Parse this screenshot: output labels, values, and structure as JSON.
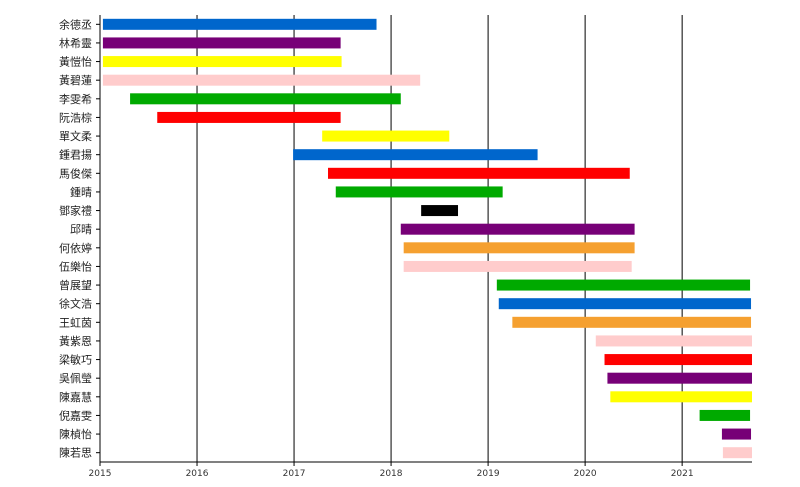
{
  "chart_data": {
    "type": "bar",
    "orientation": "horizontal-range",
    "title": "",
    "xlabel": "",
    "ylabel": "",
    "xlim": [
      2015.0,
      2021.72
    ],
    "x_ticks": [
      "2015",
      "2016",
      "2017",
      "2018",
      "2019",
      "2020",
      "2021"
    ],
    "grid": "vertical lines at each year",
    "legend": "none",
    "categories": [
      "余德丞",
      "林希靈",
      "黃愷怡",
      "黃碧蓮",
      "李雯希",
      "阮浩棕",
      "單文柔",
      "鍾君揚",
      "馬俊傑",
      "鍾晴",
      "鄧家禮",
      "邱晴",
      "何依婷",
      "伍樂怡",
      "曾展望",
      "徐文浩",
      "王虹茵",
      "黃紫恩",
      "梁敏巧",
      "吳佩瑩",
      "陳嘉慧",
      "倪嘉雯",
      "陳楨怡",
      "陳若思"
    ],
    "bars": [
      {
        "name": "余德丞",
        "start": 2015.03,
        "end": 2017.85,
        "color": "#0066cc"
      },
      {
        "name": "林希靈",
        "start": 2015.03,
        "end": 2017.48,
        "color": "#770077"
      },
      {
        "name": "黃愷怡",
        "start": 2015.03,
        "end": 2017.49,
        "color": "#ffff00"
      },
      {
        "name": "黃碧蓮",
        "start": 2015.03,
        "end": 2018.3,
        "color": "#ffcccc"
      },
      {
        "name": "李雯希",
        "start": 2015.31,
        "end": 2018.1,
        "color": "#00aa00"
      },
      {
        "name": "阮浩棕",
        "start": 2015.59,
        "end": 2017.48,
        "color": "#ff0000"
      },
      {
        "name": "單文柔",
        "start": 2017.29,
        "end": 2018.6,
        "color": "#ffff00"
      },
      {
        "name": "鍾君揚",
        "start": 2016.99,
        "end": 2019.51,
        "color": "#0066cc"
      },
      {
        "name": "馬俊傑",
        "start": 2017.35,
        "end": 2020.46,
        "color": "#ff0000"
      },
      {
        "name": "鍾晴",
        "start": 2017.43,
        "end": 2019.15,
        "color": "#00aa00"
      },
      {
        "name": "鄧家禮",
        "start": 2018.31,
        "end": 2018.69,
        "color": "#000000"
      },
      {
        "name": "邱晴",
        "start": 2018.1,
        "end": 2020.51,
        "color": "#770077"
      },
      {
        "name": "何依婷",
        "start": 2018.13,
        "end": 2020.51,
        "color": "#f5a030"
      },
      {
        "name": "伍樂怡",
        "start": 2018.13,
        "end": 2020.48,
        "color": "#ffcccc"
      },
      {
        "name": "曾展望",
        "start": 2019.09,
        "end": 2021.7,
        "color": "#00aa00"
      },
      {
        "name": "徐文浩",
        "start": 2019.11,
        "end": 2021.71,
        "color": "#0066cc"
      },
      {
        "name": "王虹茵",
        "start": 2019.25,
        "end": 2021.71,
        "color": "#f5a030"
      },
      {
        "name": "黃紫恩",
        "start": 2020.11,
        "end": 2021.72,
        "color": "#ffcccc"
      },
      {
        "name": "梁敏巧",
        "start": 2020.2,
        "end": 2021.72,
        "color": "#ff0000"
      },
      {
        "name": "吳佩瑩",
        "start": 2020.23,
        "end": 2021.72,
        "color": "#770077"
      },
      {
        "name": "陳嘉慧",
        "start": 2020.26,
        "end": 2021.72,
        "color": "#ffff00"
      },
      {
        "name": "倪嘉雯",
        "start": 2021.18,
        "end": 2021.7,
        "color": "#00aa00"
      },
      {
        "name": "陳楨怡",
        "start": 2021.41,
        "end": 2021.71,
        "color": "#770077"
      },
      {
        "name": "陳若思",
        "start": 2021.42,
        "end": 2021.72,
        "color": "#ffcccc"
      }
    ]
  }
}
